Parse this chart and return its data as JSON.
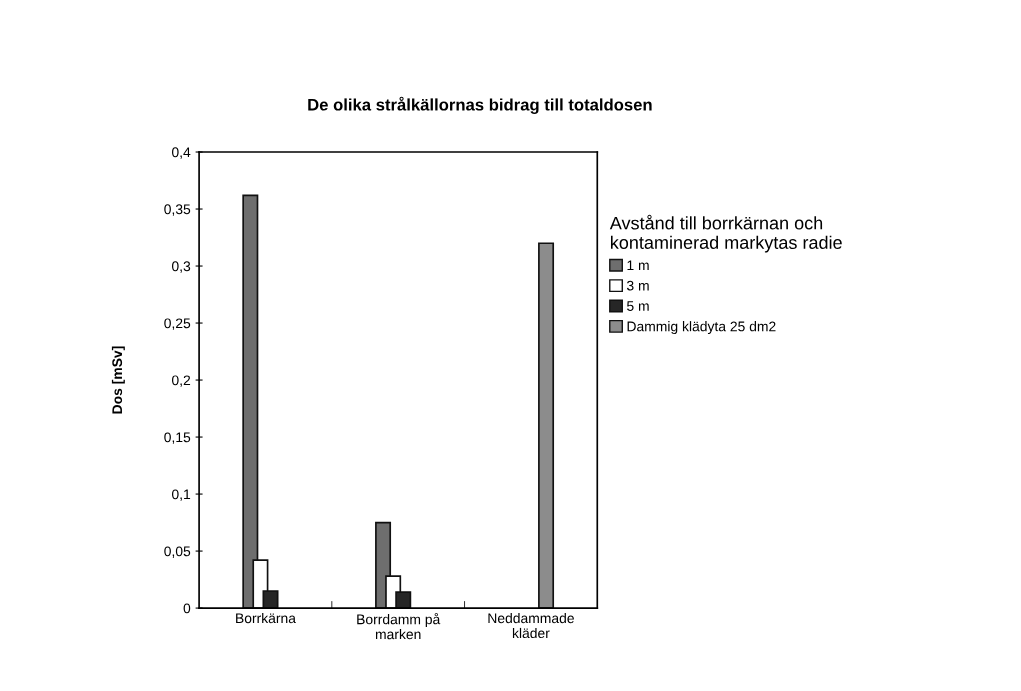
{
  "chart_data": {
    "type": "bar",
    "title": "De olika strålkällornas bidrag till totaldosen",
    "ylabel": "Dos [mSv]",
    "legend_title": "Avstånd till borrkärnan och\nkontaminerad markytas radie",
    "categories": [
      "Borrkärna",
      "Borrdamm på\nmarken",
      "Neddammade\nkläder"
    ],
    "series": [
      {
        "name": "1 m",
        "color": "#6e6e6e",
        "values": [
          0.362,
          0.075,
          null
        ]
      },
      {
        "name": "3 m",
        "color": "#ffffff",
        "values": [
          0.042,
          0.028,
          null
        ]
      },
      {
        "name": "5 m",
        "color": "#262626",
        "values": [
          0.015,
          0.014,
          null
        ]
      },
      {
        "name": "Dammig klädyta 25 dm2",
        "color": "#8c8c8c",
        "values": [
          null,
          null,
          0.32
        ]
      }
    ],
    "ylim": [
      0,
      0.4
    ],
    "yticks": [
      0,
      {
        "value": 0.05,
        "label": "0,05"
      },
      {
        "value": 0.1,
        "label": "0,1"
      },
      {
        "value": 0.15,
        "label": "0,15"
      },
      {
        "value": 0.2,
        "label": "0,2"
      },
      {
        "value": 0.25,
        "label": "0,25"
      },
      {
        "value": 0.3,
        "label": "0,3"
      },
      {
        "value": 0.35,
        "label": "0,35"
      },
      {
        "value": 0.4,
        "label": "0,4"
      }
    ],
    "grid": false,
    "legend": "right"
  }
}
